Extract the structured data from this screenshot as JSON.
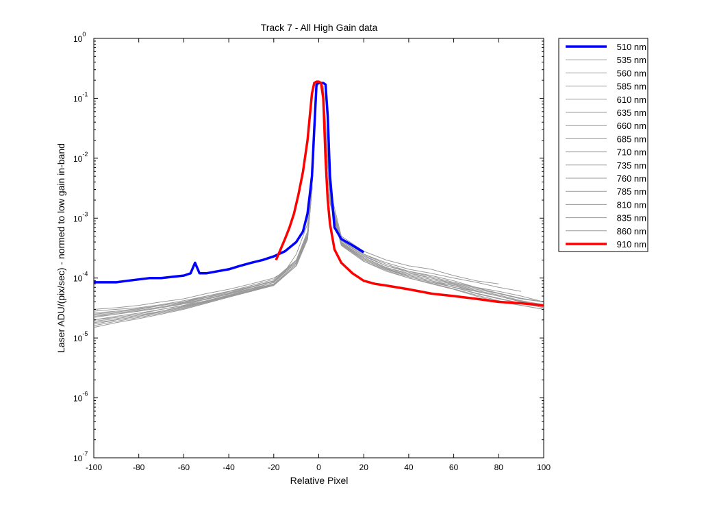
{
  "chart_data": {
    "type": "line",
    "title": "Track 7 - All High Gain data",
    "xlabel": "Relative Pixel",
    "ylabel": "Laser ADU/(pix/sec) - normed to low gain in-band",
    "y_scale": "log",
    "xlim": [
      -100,
      100
    ],
    "ylim": [
      1e-07,
      1
    ],
    "x_ticks": [
      -100,
      -80,
      -60,
      -40,
      -20,
      0,
      20,
      40,
      60,
      80,
      100
    ],
    "x_tick_labels": [
      "-100",
      "-80",
      "-60",
      "-40",
      "-20",
      "0",
      "20",
      "40",
      "60",
      "80",
      "100"
    ],
    "y_ticks": [
      1e-07,
      1e-06,
      1e-05,
      0.0001,
      0.001,
      0.01,
      0.1,
      1
    ],
    "y_tick_labels": [
      {
        "base": "10",
        "exp": "-7"
      },
      {
        "base": "10",
        "exp": "-6"
      },
      {
        "base": "10",
        "exp": "-5"
      },
      {
        "base": "10",
        "exp": "-4"
      },
      {
        "base": "10",
        "exp": "-3"
      },
      {
        "base": "10",
        "exp": "-2"
      },
      {
        "base": "10",
        "exp": "-1"
      },
      {
        "base": "10",
        "exp": "0"
      }
    ],
    "grid": false,
    "legend_position": "outside-top-right",
    "series": [
      {
        "name": "510 nm",
        "color": "#0000ff",
        "width": "thick",
        "x": [
          -100,
          -95,
          -90,
          -85,
          -80,
          -75,
          -70,
          -65,
          -60,
          -57,
          -55,
          -53,
          -50,
          -45,
          -40,
          -35,
          -30,
          -25,
          -20,
          -15,
          -10,
          -7,
          -5,
          -3,
          -2,
          -1,
          0,
          1,
          2,
          3,
          4,
          5,
          7,
          10,
          15,
          20
        ],
        "y": [
          8.5e-05,
          8.5e-05,
          8.5e-05,
          9e-05,
          9.5e-05,
          0.0001,
          0.0001,
          0.000105,
          0.00011,
          0.00012,
          0.00018,
          0.00012,
          0.00012,
          0.00013,
          0.00014,
          0.00016,
          0.00018,
          0.0002,
          0.00023,
          0.00028,
          0.0004,
          0.0006,
          0.0012,
          0.005,
          0.03,
          0.17,
          0.18,
          0.18,
          0.18,
          0.17,
          0.05,
          0.005,
          0.0007,
          0.00045,
          0.00035,
          0.00027
        ]
      },
      {
        "name": "535 nm",
        "color": "#999999",
        "width": "thin",
        "x": [
          -100,
          -90,
          -80,
          -70,
          -60,
          -50,
          -40,
          -30,
          -20,
          -15,
          -10,
          -5,
          -3,
          -2,
          -1,
          0,
          1,
          2,
          3,
          5,
          10,
          20,
          30,
          40,
          50,
          60,
          70,
          80
        ],
        "y": [
          3e-05,
          3.2e-05,
          3.5e-05,
          4e-05,
          4.5e-05,
          5.5e-05,
          6.5e-05,
          8e-05,
          0.0001,
          0.00013,
          0.00025,
          0.0008,
          0.005,
          0.05,
          0.17,
          0.18,
          0.18,
          0.16,
          0.04,
          0.003,
          0.0005,
          0.00028,
          0.0002,
          0.00016,
          0.00014,
          0.00011,
          9e-05,
          8e-05
        ]
      },
      {
        "name": "560 nm",
        "color": "#999999",
        "width": "thin",
        "x": [
          -100,
          -90,
          -80,
          -70,
          -60,
          -50,
          -40,
          -30,
          -20,
          -10,
          -5,
          -3,
          -2,
          -1,
          0,
          1,
          2,
          3,
          5,
          10,
          20,
          30,
          40,
          50,
          60,
          70,
          80,
          90
        ],
        "y": [
          2.5e-05,
          2.7e-05,
          3e-05,
          3.5e-05,
          4e-05,
          5e-05,
          6e-05,
          7e-05,
          9e-05,
          0.0002,
          0.0006,
          0.004,
          0.04,
          0.16,
          0.18,
          0.18,
          0.15,
          0.03,
          0.0025,
          0.00045,
          0.00025,
          0.00018,
          0.00014,
          0.00012,
          0.0001,
          8.5e-05,
          7e-05,
          6e-05
        ]
      },
      {
        "name": "585 nm",
        "color": "#999999",
        "width": "thin",
        "x": [
          -100,
          -90,
          -80,
          -70,
          -60,
          -50,
          -40,
          -30,
          -20,
          -10,
          -5,
          -3,
          -2,
          -1,
          0,
          1,
          2,
          3,
          5,
          10,
          20,
          30,
          40,
          50,
          60,
          70,
          80,
          90,
          100
        ],
        "y": [
          2e-05,
          2.2e-05,
          2.5e-05,
          3e-05,
          3.5e-05,
          4.5e-05,
          5.5e-05,
          6.5e-05,
          8.5e-05,
          0.00018,
          0.0005,
          0.003,
          0.03,
          0.15,
          0.18,
          0.18,
          0.14,
          0.03,
          0.002,
          0.0004,
          0.00022,
          0.00015,
          0.00012,
          0.0001,
          8e-05,
          6.5e-05,
          5.5e-05,
          4.5e-05,
          4e-05
        ]
      },
      {
        "name": "610 nm",
        "color": "#999999",
        "width": "thin",
        "x": [
          -100,
          -90,
          -80,
          -70,
          -60,
          -50,
          -40,
          -30,
          -20,
          -10,
          -5,
          -3,
          -2,
          -1,
          0,
          1,
          2,
          3,
          5,
          10,
          20,
          30,
          40,
          50,
          60,
          70,
          80,
          90,
          100
        ],
        "y": [
          1.8e-05,
          2e-05,
          2.3e-05,
          2.8e-05,
          3.3e-05,
          4e-05,
          5e-05,
          6e-05,
          8e-05,
          0.00017,
          0.00045,
          0.003,
          0.03,
          0.15,
          0.18,
          0.18,
          0.14,
          0.03,
          0.002,
          0.00038,
          0.0002,
          0.00014,
          0.00011,
          9e-05,
          7e-05,
          6e-05,
          5e-05,
          4e-05,
          3.5e-05
        ]
      },
      {
        "name": "635 nm",
        "color": "#999999",
        "width": "thin",
        "x": [
          -100,
          -90,
          -80,
          -70,
          -60,
          -50,
          -40,
          -30,
          -20,
          -10,
          -5,
          -3,
          -2,
          -1,
          0,
          1,
          2,
          3,
          5,
          10,
          20,
          30,
          40,
          50,
          60,
          70,
          80,
          90,
          100
        ],
        "y": [
          2.2e-05,
          2.5e-05,
          2.8e-05,
          3.2e-05,
          3.8e-05,
          4.5e-05,
          5.5e-05,
          7e-05,
          9e-05,
          0.00019,
          0.0005,
          0.0035,
          0.035,
          0.16,
          0.18,
          0.18,
          0.15,
          0.035,
          0.0022,
          0.00042,
          0.00023,
          0.00016,
          0.00013,
          0.00011,
          9e-05,
          7e-05,
          6e-05,
          5e-05,
          4e-05
        ]
      },
      {
        "name": "660 nm",
        "color": "#999999",
        "width": "thin",
        "x": [
          -100,
          -90,
          -80,
          -70,
          -60,
          -50,
          -40,
          -30,
          -20,
          -10,
          -5,
          -3,
          -2,
          -1,
          0,
          1,
          2,
          3,
          5,
          10,
          20,
          30,
          40,
          50,
          60,
          70,
          80,
          90,
          100
        ],
        "y": [
          1.5e-05,
          1.8e-05,
          2.1e-05,
          2.5e-05,
          3e-05,
          3.8e-05,
          4.8e-05,
          6e-05,
          7.5e-05,
          0.00016,
          0.00045,
          0.003,
          0.03,
          0.15,
          0.18,
          0.18,
          0.14,
          0.03,
          0.0018,
          0.00035,
          0.00019,
          0.00013,
          0.0001,
          8e-05,
          6.5e-05,
          5e-05,
          4e-05,
          3.5e-05,
          3e-05
        ]
      },
      {
        "name": "685 nm",
        "color": "#999999",
        "width": "thin",
        "x": [
          -100,
          -90,
          -80,
          -70,
          -60,
          -50,
          -40,
          -30,
          -20,
          -10,
          -5,
          -3,
          -2,
          -1,
          0,
          1,
          2,
          3,
          5,
          10,
          20,
          30,
          40,
          50,
          60,
          70,
          80,
          90,
          100
        ],
        "y": [
          2.8e-05,
          3e-05,
          3.2e-05,
          3.6e-05,
          4.2e-05,
          5e-05,
          6e-05,
          7.5e-05,
          9.5e-05,
          0.0002,
          0.00055,
          0.0035,
          0.035,
          0.16,
          0.18,
          0.18,
          0.15,
          0.035,
          0.0023,
          0.00045,
          0.00025,
          0.00017,
          0.00013,
          0.000105,
          8.5e-05,
          7e-05,
          5.5e-05,
          4.5e-05,
          4e-05
        ]
      },
      {
        "name": "710 nm",
        "color": "#999999",
        "width": "thin",
        "x": [
          -100,
          -90,
          -80,
          -70,
          -60,
          -50,
          -40,
          -30,
          -20,
          -10,
          -5,
          -3,
          -2,
          -1,
          0,
          1,
          2,
          3,
          5,
          10,
          20,
          30,
          40,
          50,
          60,
          70,
          80,
          90,
          100
        ],
        "y": [
          2e-05,
          2.3e-05,
          2.6e-05,
          3e-05,
          3.5e-05,
          4.2e-05,
          5.2e-05,
          6.5e-05,
          8e-05,
          0.00017,
          0.00048,
          0.003,
          0.03,
          0.15,
          0.18,
          0.18,
          0.14,
          0.03,
          0.002,
          0.00038,
          0.00021,
          0.000145,
          0.00011,
          9e-05,
          7.5e-05,
          6e-05,
          5e-05,
          4e-05,
          3.5e-05
        ]
      },
      {
        "name": "735 nm",
        "color": "#999999",
        "width": "thin",
        "x": [
          -100,
          -90,
          -80,
          -70,
          -60,
          -50,
          -40,
          -30,
          -20,
          -10,
          -5,
          -3,
          -2,
          -1,
          0,
          1,
          2,
          3,
          5,
          10,
          20,
          30,
          40,
          50,
          60,
          70,
          80,
          90,
          100
        ],
        "y": [
          1.7e-05,
          2e-05,
          2.3e-05,
          2.7e-05,
          3.2e-05,
          4e-05,
          5e-05,
          6.2e-05,
          7.8e-05,
          0.00016,
          0.00045,
          0.003,
          0.03,
          0.15,
          0.18,
          0.18,
          0.14,
          0.03,
          0.0019,
          0.00036,
          0.0002,
          0.00014,
          0.000105,
          8.5e-05,
          7e-05,
          5.5e-05,
          4.5e-05,
          3.8e-05,
          3.2e-05
        ]
      },
      {
        "name": "760 nm",
        "color": "#999999",
        "width": "thin",
        "x": [
          -100,
          -90,
          -80,
          -70,
          -60,
          -50,
          -40,
          -30,
          -20,
          -10,
          -5,
          -3,
          -2,
          -1,
          0,
          1,
          2,
          3,
          5,
          10,
          20,
          30,
          40,
          50,
          60,
          70,
          80,
          90,
          100
        ],
        "y": [
          2.4e-05,
          2.6e-05,
          2.9e-05,
          3.3e-05,
          3.9e-05,
          4.7e-05,
          5.7e-05,
          7e-05,
          8.8e-05,
          0.00018,
          0.0005,
          0.0032,
          0.032,
          0.15,
          0.18,
          0.18,
          0.14,
          0.03,
          0.0021,
          0.0004,
          0.00022,
          0.00015,
          0.000115,
          9.5e-05,
          7.8e-05,
          6.2e-05,
          5.2e-05,
          4.2e-05,
          3.6e-05
        ]
      },
      {
        "name": "785 nm",
        "color": "#999999",
        "width": "thin",
        "x": [
          -100,
          -90,
          -80,
          -70,
          -60,
          -50,
          -40,
          -30,
          -20,
          -10,
          -5,
          -3,
          -2,
          -1,
          0,
          1,
          2,
          3,
          5,
          10,
          20,
          30,
          40,
          50,
          60,
          70,
          80,
          90,
          100
        ],
        "y": [
          1.6e-05,
          1.9e-05,
          2.2e-05,
          2.6e-05,
          3.1e-05,
          3.9e-05,
          4.9e-05,
          6.1e-05,
          7.6e-05,
          0.00016,
          0.00044,
          0.0029,
          0.03,
          0.15,
          0.18,
          0.18,
          0.14,
          0.03,
          0.0018,
          0.00035,
          0.00019,
          0.000135,
          0.0001,
          8.2e-05,
          6.6e-05,
          5.2e-05,
          4.2e-05,
          3.5e-05,
          3e-05
        ]
      },
      {
        "name": "810 nm",
        "color": "#999999",
        "width": "thin",
        "x": [
          -100,
          -90,
          -80,
          -70,
          -60,
          -50,
          -40,
          -30,
          -20,
          -10,
          -5,
          -3,
          -2,
          -1,
          0,
          1,
          2,
          3,
          5,
          10,
          20,
          30,
          40,
          50,
          60,
          70,
          80,
          90,
          100
        ],
        "y": [
          2.6e-05,
          2.8e-05,
          3.1e-05,
          3.5e-05,
          4e-05,
          4.8e-05,
          5.9e-05,
          7.2e-05,
          9e-05,
          0.00019,
          0.00052,
          0.0033,
          0.033,
          0.16,
          0.18,
          0.18,
          0.15,
          0.033,
          0.0022,
          0.00043,
          0.00024,
          0.00016,
          0.000125,
          0.0001,
          8.2e-05,
          6.8e-05,
          5.6e-05,
          4.6e-05,
          4e-05
        ]
      },
      {
        "name": "835 nm",
        "color": "#999999",
        "width": "thin",
        "x": [
          -100,
          -90,
          -80,
          -70,
          -60,
          -50,
          -40,
          -30,
          -20,
          -10,
          -5,
          -3,
          -2,
          -1,
          0,
          1,
          2,
          3,
          5,
          10,
          20,
          30,
          40,
          50,
          60,
          70,
          80,
          90,
          100
        ],
        "y": [
          1.9e-05,
          2.1e-05,
          2.4e-05,
          2.8e-05,
          3.4e-05,
          4.1e-05,
          5.1e-05,
          6.3e-05,
          8e-05,
          0.00017,
          0.00047,
          0.003,
          0.03,
          0.15,
          0.18,
          0.18,
          0.14,
          0.03,
          0.0019,
          0.00037,
          0.0002,
          0.00014,
          0.000105,
          8.6e-05,
          7e-05,
          5.6e-05,
          4.6e-05,
          3.8e-05,
          3.3e-05
        ]
      },
      {
        "name": "860 nm",
        "color": "#999999",
        "width": "thin",
        "x": [
          -100,
          -90,
          -80,
          -70,
          -60,
          -50,
          -40,
          -30,
          -20,
          -10,
          -5,
          -3,
          -2,
          -1,
          0,
          1,
          2,
          3,
          5,
          10,
          20,
          30,
          40,
          50,
          60,
          70,
          80,
          90,
          100
        ],
        "y": [
          2.3e-05,
          2.5e-05,
          2.8e-05,
          3.2e-05,
          3.7e-05,
          4.4e-05,
          5.4e-05,
          6.7e-05,
          8.4e-05,
          0.00018,
          0.00049,
          0.0031,
          0.031,
          0.15,
          0.18,
          0.18,
          0.14,
          0.031,
          0.002,
          0.00039,
          0.00021,
          0.000145,
          0.00011,
          9e-05,
          7.4e-05,
          6e-05,
          5e-05,
          4.1e-05,
          3.5e-05
        ]
      },
      {
        "name": "910 nm",
        "color": "#ff0000",
        "width": "thick",
        "x": [
          -19,
          -17,
          -15,
          -13,
          -11,
          -9,
          -7,
          -5,
          -4,
          -3,
          -2,
          -1,
          0,
          1,
          2,
          3,
          4,
          5,
          7,
          10,
          15,
          20,
          25,
          30,
          40,
          50,
          60,
          70,
          80,
          90,
          100
        ],
        "y": [
          0.0002,
          0.0003,
          0.00045,
          0.0007,
          0.0012,
          0.0025,
          0.006,
          0.02,
          0.05,
          0.12,
          0.18,
          0.19,
          0.19,
          0.18,
          0.1,
          0.01,
          0.002,
          0.0008,
          0.0003,
          0.00018,
          0.00012,
          9e-05,
          8e-05,
          7.5e-05,
          6.5e-05,
          5.5e-05,
          5e-05,
          4.5e-05,
          4e-05,
          3.8e-05,
          3.5e-05
        ]
      }
    ]
  }
}
